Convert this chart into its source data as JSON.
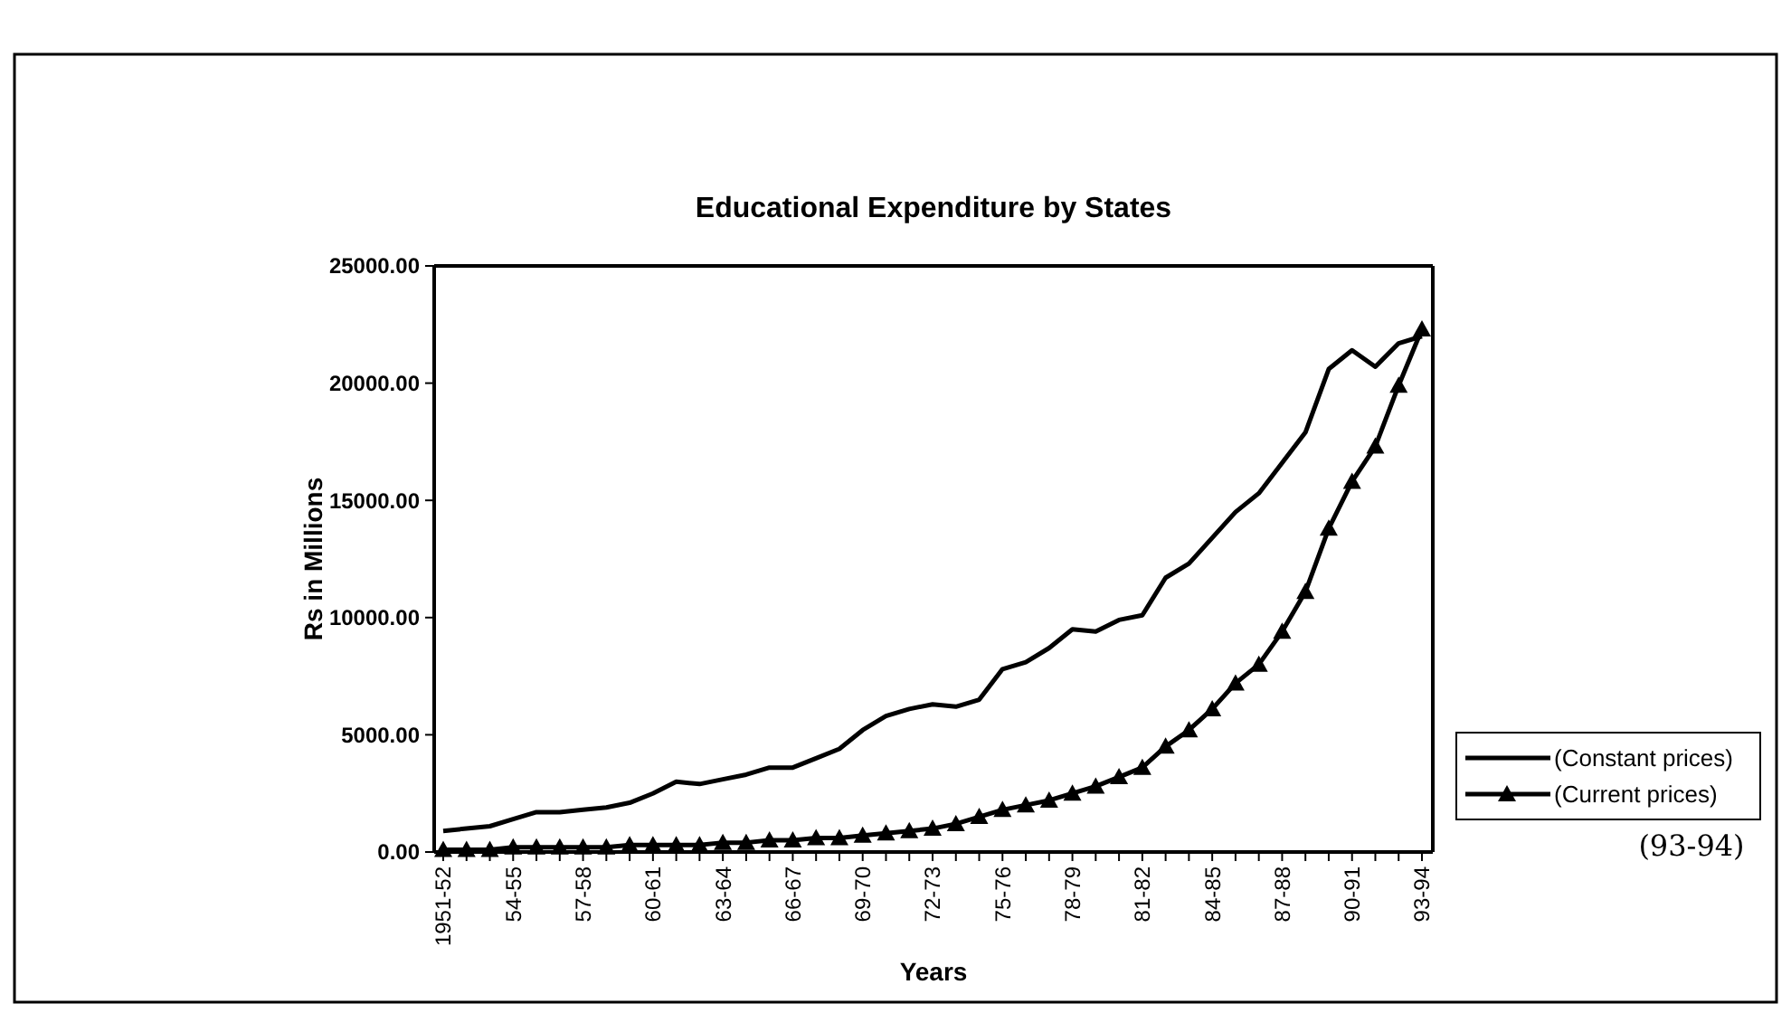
{
  "chart_data": {
    "type": "line",
    "title": "Educational Expenditure by States",
    "xlabel": "Years",
    "ylabel": "Rs in Millions",
    "categories": [
      "1951-52",
      null,
      null,
      "54-55",
      null,
      null,
      "57-58",
      null,
      null,
      "60-61",
      null,
      null,
      "63-64",
      null,
      null,
      "66-67",
      null,
      null,
      "69-70",
      null,
      null,
      "72-73",
      null,
      null,
      "75-76",
      null,
      null,
      "78-79",
      null,
      null,
      "81-82",
      null,
      null,
      "84-85",
      null,
      null,
      "87-88",
      null,
      null,
      "90-91",
      null,
      null,
      "93-94"
    ],
    "series": [
      {
        "name": "(Constant prices)",
        "color": "#000000",
        "marker": "none",
        "values": [
          900,
          1000,
          1100,
          1400,
          1700,
          1700,
          1800,
          1900,
          2100,
          2500,
          3000,
          2900,
          3100,
          3300,
          3600,
          3600,
          4000,
          4400,
          5200,
          5800,
          6100,
          6300,
          6200,
          6500,
          7800,
          8100,
          8700,
          9500,
          9400,
          9900,
          10100,
          11700,
          12300,
          13400,
          14500,
          15300,
          16600,
          17900,
          20600,
          21400,
          20700,
          21700,
          22000
        ]
      },
      {
        "name": "(Current prices)",
        "color": "#000000",
        "marker": "triangle",
        "values": [
          100,
          100,
          100,
          200,
          200,
          200,
          200,
          200,
          300,
          300,
          300,
          300,
          400,
          400,
          500,
          500,
          600,
          600,
          700,
          800,
          900,
          1000,
          1200,
          1500,
          1800,
          2000,
          2200,
          2500,
          2800,
          3200,
          3600,
          4500,
          5200,
          6100,
          7200,
          8000,
          9400,
          11100,
          13800,
          15800,
          17300,
          19900,
          22300
        ]
      }
    ],
    "ylim": [
      0,
      25000
    ],
    "yticks": [
      {
        "value": 0,
        "label": "0.00"
      },
      {
        "value": 5000,
        "label": "5000.00"
      },
      {
        "value": 10000,
        "label": "10000.00"
      },
      {
        "value": 15000,
        "label": "15000.00"
      },
      {
        "value": 20000,
        "label": "20000.00"
      },
      {
        "value": 25000,
        "label": "25000.00"
      }
    ],
    "grid": false,
    "legend": "right",
    "line_style": "solid",
    "annotations": [
      "(93-94)"
    ]
  }
}
